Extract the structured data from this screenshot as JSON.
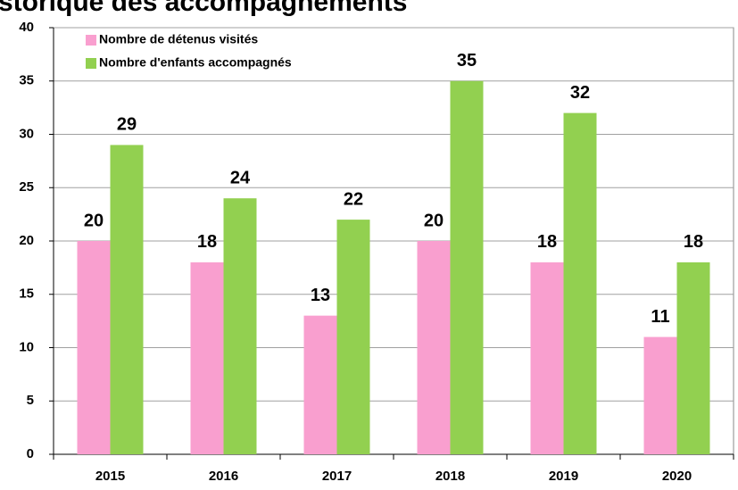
{
  "chart_data": {
    "type": "bar",
    "title": "storique des accompagnements",
    "categories": [
      "2015",
      "2016",
      "2017",
      "2018",
      "2019",
      "2020"
    ],
    "series": [
      {
        "name": "Nombre de détenus visités",
        "color": "#f99fcf",
        "values": [
          20,
          18,
          13,
          20,
          18,
          11
        ]
      },
      {
        "name": "Nombre d'enfants accompagnés",
        "color": "#92d050",
        "values": [
          29,
          24,
          22,
          35,
          32,
          18
        ]
      }
    ],
    "ylim": [
      0,
      40
    ],
    "yticks": [
      0,
      5,
      10,
      15,
      20,
      25,
      30,
      35,
      40
    ],
    "grid": true,
    "legend": "upper left"
  }
}
